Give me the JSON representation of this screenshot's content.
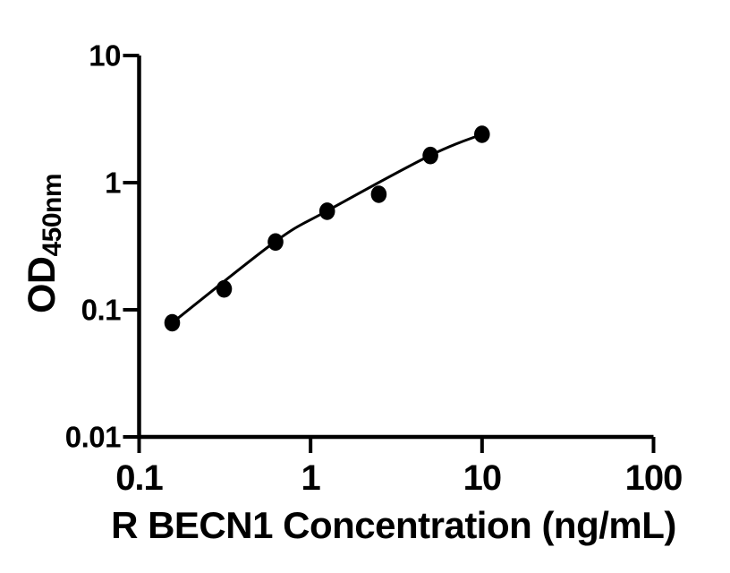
{
  "figure": {
    "background": "#ffffff",
    "ink_color": "#000000"
  },
  "chart_data": {
    "type": "scatter",
    "title": "",
    "xlabel": "R BECN1 Concentration (ng/mL)",
    "ylabel_main": "OD",
    "ylabel_sub": "450nm",
    "x_scale": "log",
    "y_scale": "log",
    "xlim": [
      0.1,
      100
    ],
    "ylim": [
      0.01,
      10
    ],
    "x_ticks": [
      0.1,
      1,
      10,
      100
    ],
    "x_tick_labels": [
      "0.1",
      "1",
      "10",
      "100"
    ],
    "y_ticks": [
      10,
      1,
      0.1,
      0.01
    ],
    "y_tick_labels": [
      "10",
      "1",
      "0.1",
      "0.01"
    ],
    "grid": false,
    "legend": false,
    "marker": {
      "shape": "circle",
      "color": "#000000"
    },
    "line_color": "#000000",
    "points": [
      {
        "x": 0.156,
        "y": 0.079
      },
      {
        "x": 0.313,
        "y": 0.146
      },
      {
        "x": 0.625,
        "y": 0.341
      },
      {
        "x": 1.25,
        "y": 0.596
      },
      {
        "x": 2.5,
        "y": 0.81
      },
      {
        "x": 5,
        "y": 1.635
      },
      {
        "x": 10,
        "y": 2.4
      }
    ],
    "fit_curve_anchors": [
      {
        "x": 0.156,
        "y": 0.079
      },
      {
        "x": 0.625,
        "y": 0.345
      },
      {
        "x": 1.25,
        "y": 0.6
      },
      {
        "x": 5,
        "y": 1.64
      },
      {
        "x": 10,
        "y": 2.4
      }
    ]
  }
}
